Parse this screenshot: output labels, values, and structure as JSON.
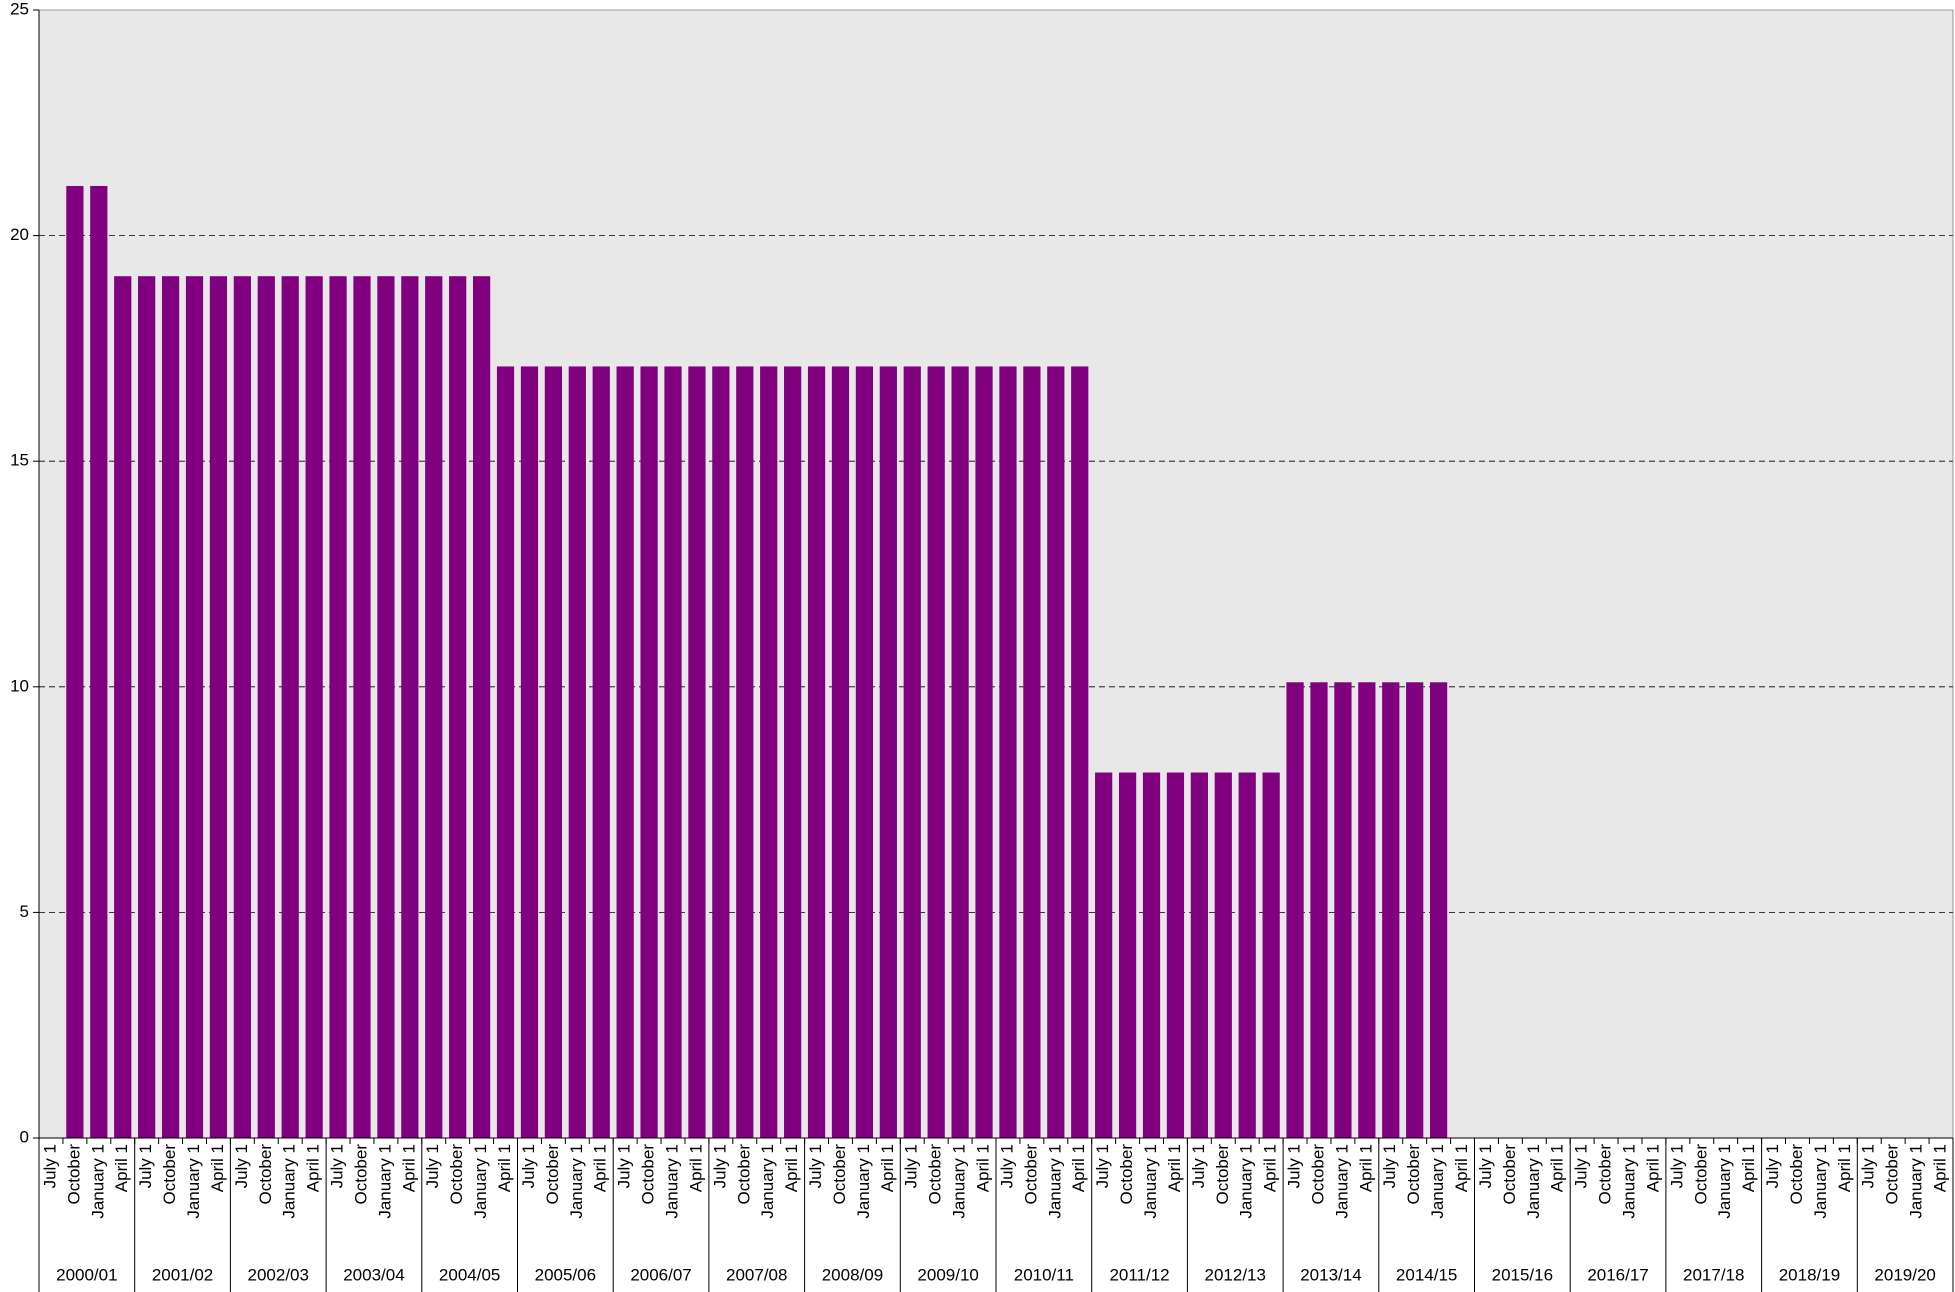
{
  "chart_data": {
    "type": "bar",
    "color": "#800080",
    "grid": true,
    "plot_background": "#e8e8e8",
    "ylim": [
      0,
      25
    ],
    "yticks": [
      0,
      5,
      10,
      15,
      20,
      25
    ],
    "categories": [
      "July 1",
      "October",
      "January 1",
      "April 1",
      "July 1",
      "October",
      "January 1",
      "April 1",
      "July 1",
      "October",
      "January 1",
      "April 1",
      "July 1",
      "October",
      "January 1",
      "April 1",
      "July 1",
      "October",
      "January 1",
      "April 1",
      "July 1",
      "October",
      "January 1",
      "April 1",
      "July 1",
      "October",
      "January 1",
      "April 1",
      "July 1",
      "October",
      "January 1",
      "April 1",
      "July 1",
      "October",
      "January 1",
      "April 1",
      "July 1",
      "October",
      "January 1",
      "April 1",
      "July 1",
      "October",
      "January 1",
      "April 1",
      "July 1",
      "October",
      "January 1",
      "April 1",
      "July 1",
      "October",
      "January 1",
      "April 1",
      "July 1",
      "October",
      "January 1",
      "April 1",
      "July 1",
      "October",
      "January 1",
      "April 1",
      "July 1",
      "October",
      "January 1",
      "April 1",
      "July 1",
      "October",
      "January 1",
      "April 1",
      "July 1",
      "October",
      "January 1",
      "April 1",
      "July 1",
      "October",
      "January 1",
      "April 1",
      "July 1",
      "October",
      "January 1",
      "April 1"
    ],
    "category_groups": [
      "2000/01",
      "2001/02",
      "2002/03",
      "2003/04",
      "2004/05",
      "2005/06",
      "2006/07",
      "2007/08",
      "2008/09",
      "2009/10",
      "2010/11",
      "2011/12",
      "2012/13",
      "2013/14",
      "2014/15",
      "2015/16",
      "2016/17",
      "2017/18",
      "2018/19",
      "2019/20"
    ],
    "values": [
      null,
      21.1,
      21.1,
      19.1,
      19.1,
      19.1,
      19.1,
      19.1,
      19.1,
      19.1,
      19.1,
      19.1,
      19.1,
      19.1,
      19.1,
      19.1,
      19.1,
      19.1,
      19.1,
      17.1,
      17.1,
      17.1,
      17.1,
      17.1,
      17.1,
      17.1,
      17.1,
      17.1,
      17.1,
      17.1,
      17.1,
      17.1,
      17.1,
      17.1,
      17.1,
      17.1,
      17.1,
      17.1,
      17.1,
      17.1,
      17.1,
      17.1,
      17.1,
      17.1,
      8.1,
      8.1,
      8.1,
      8.1,
      8.1,
      8.1,
      8.1,
      8.1,
      10.1,
      10.1,
      10.1,
      10.1,
      10.1,
      10.1,
      10.1,
      null,
      null,
      null,
      null,
      null,
      null,
      null,
      null,
      null,
      null,
      null,
      null,
      null,
      null,
      null,
      null,
      null,
      null,
      null,
      null,
      null
    ]
  }
}
